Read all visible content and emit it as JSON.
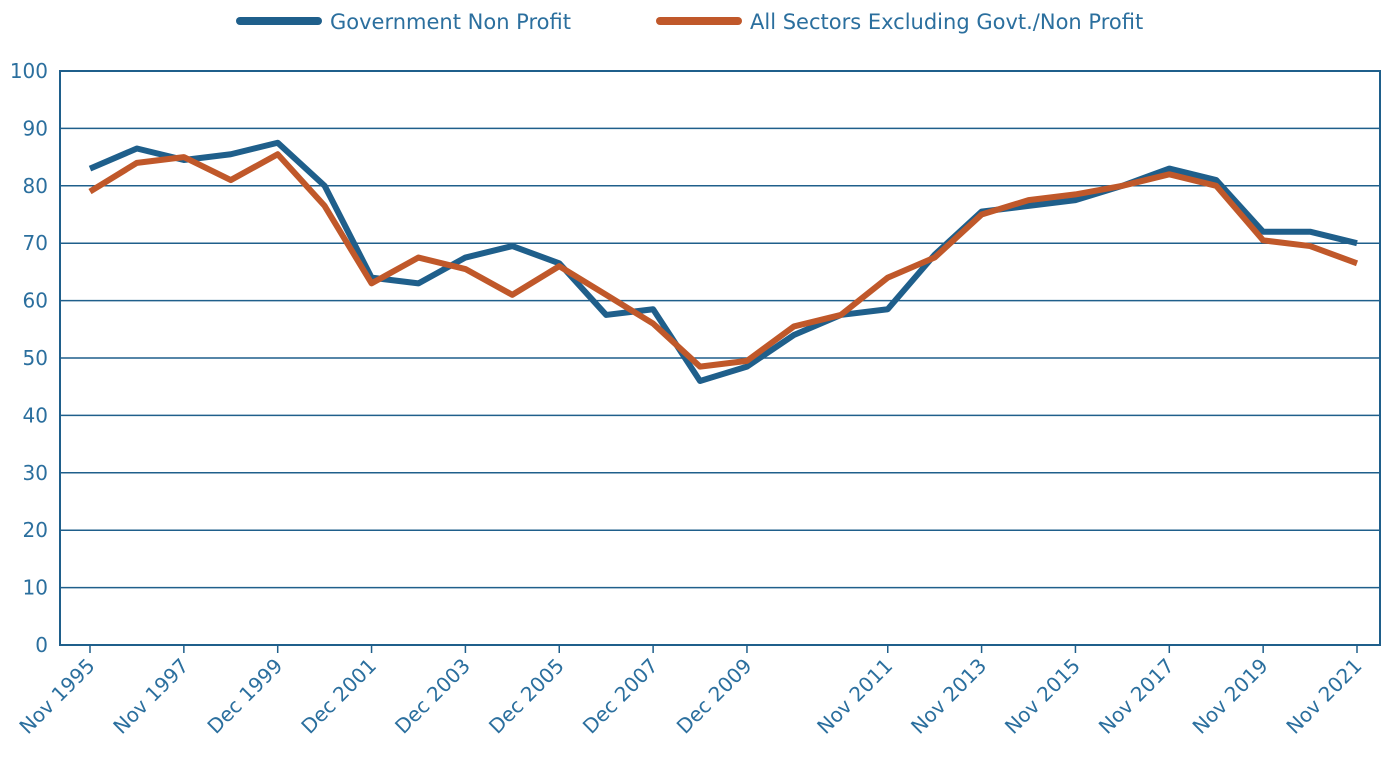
{
  "chart_data": {
    "type": "line",
    "categories": [
      "Nov 1995",
      null,
      "Nov 1997",
      null,
      "Dec 1999",
      null,
      "Dec 2001",
      null,
      "Dec 2003",
      null,
      "Dec 2005",
      null,
      "Dec 2007",
      null,
      "Dec 2009",
      null,
      null,
      "Nov 2011",
      null,
      "Nov 2013",
      null,
      "Nov 2015",
      null,
      "Nov 2017",
      null,
      "Nov 2019",
      null,
      "Nov 2021"
    ],
    "series": [
      {
        "name": "Government Non Profit",
        "color": "#1f5f8b",
        "values": [
          83,
          86.5,
          84.5,
          85.5,
          87.5,
          80,
          64,
          63,
          67.5,
          69.5,
          66.5,
          57.5,
          58.5,
          46,
          48.5,
          54,
          57.5,
          58.5,
          68,
          75.5,
          76.5,
          77.5,
          80,
          83,
          81,
          72,
          72,
          70
        ]
      },
      {
        "name": "All Sectors Excluding Govt./Non Profit",
        "color": "#c0582a",
        "values": [
          79,
          84,
          85,
          81,
          85.5,
          76.5,
          63,
          67.5,
          65.5,
          61,
          66,
          61,
          56,
          48.5,
          49.5,
          55.5,
          57.5,
          64,
          67.5,
          75,
          77.5,
          78.5,
          80,
          82,
          80,
          70.5,
          69.5,
          66.5
        ]
      }
    ],
    "ylim": [
      0,
      100
    ],
    "yticks": [
      0,
      10,
      20,
      30,
      40,
      50,
      60,
      70,
      80,
      90,
      100
    ],
    "grid": true,
    "legend": "top"
  }
}
